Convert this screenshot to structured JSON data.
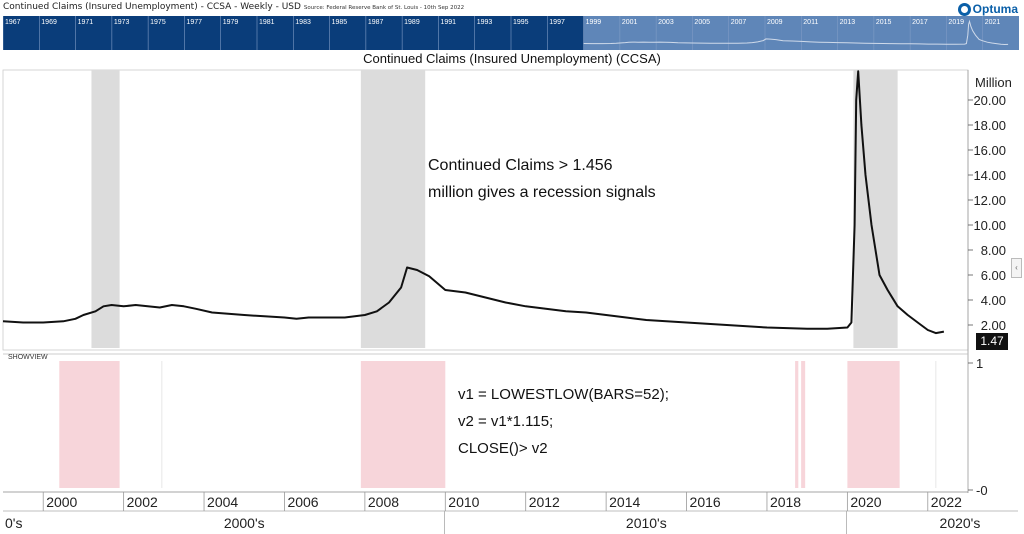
{
  "header": {
    "title": "Continued Claims (Insured Unemployment) - CCSA - Weekly - USD",
    "source": "Source: Federal Reserve Bank of St. Louis - 10th Sep 2022",
    "logo_text": "Optuma"
  },
  "overview": {
    "years": [
      "1967",
      "1969",
      "1971",
      "1973",
      "1975",
      "1977",
      "1979",
      "1981",
      "1983",
      "1985",
      "1987",
      "1989",
      "1991",
      "1993",
      "1995",
      "1997",
      "1999",
      "2001",
      "2003",
      "2005",
      "2007",
      "2009",
      "2011",
      "2013",
      "2015",
      "2017",
      "2019",
      "2021"
    ],
    "selected_from": 1999,
    "colors": {
      "dark": "#0a3d7a",
      "light": "#5f86b8",
      "line": "#cfdaea"
    }
  },
  "chart_title": "Continued Claims (Insured Unemployment) (CCSA)",
  "unit_label": "Million",
  "last_value": "1.47",
  "annotation_recession": [
    "Continued Claims > 1.456",
    "million gives a recession signals"
  ],
  "indicator_label": "SHOWVIEW",
  "annotation_formula": [
    "v1 = LOWESTLOW(BARS=52);",
    "v2 = v1*1.115;",
    "CLOSE()> v2"
  ],
  "chart_data": [
    {
      "type": "line",
      "title": "Continued Claims (Insured Unemployment) (CCSA)",
      "ylabel": "Million",
      "xlim": [
        1999.0,
        2023.0
      ],
      "ylim": [
        0,
        22
      ],
      "yticks": [
        "2.00",
        "4.00",
        "6.00",
        "8.00",
        "10.00",
        "12.00",
        "14.00",
        "16.00",
        "18.00",
        "20.00"
      ],
      "x_tick_labels": [
        "2000",
        "2002",
        "2004",
        "2006",
        "2008",
        "2010",
        "2012",
        "2014",
        "2016",
        "2018",
        "2020",
        "2022"
      ],
      "decade_labels": [
        "0's",
        "2000's",
        "2010's",
        "2020's"
      ],
      "recessions": [
        [
          2001.2,
          2001.9
        ],
        [
          2007.9,
          2009.5
        ],
        [
          2020.15,
          2021.25
        ]
      ],
      "series": [
        {
          "x": [
            1999.0,
            1999.5,
            2000.0,
            2000.5,
            2000.8,
            2001.0,
            2001.3,
            2001.5,
            2001.7,
            2002.0,
            2002.3,
            2002.6,
            2002.9,
            2003.2,
            2003.5,
            2003.8,
            2004.2,
            2004.6,
            2005.0,
            2005.5,
            2006.0,
            2006.3,
            2006.6,
            2007.0,
            2007.5,
            2008.0,
            2008.3,
            2008.6,
            2008.9,
            2009.05,
            2009.3,
            2009.6,
            2010.0,
            2010.5,
            2011.0,
            2011.5,
            2012.0,
            2012.5,
            2013.0,
            2013.5,
            2014.0,
            2014.5,
            2015.0,
            2015.5,
            2016.0,
            2016.5,
            2017.0,
            2017.5,
            2018.0,
            2018.5,
            2019.0,
            2019.5,
            2020.0,
            2020.1,
            2020.18,
            2020.22,
            2020.27,
            2020.35,
            2020.45,
            2020.6,
            2020.8,
            2021.0,
            2021.25,
            2021.5,
            2021.75,
            2022.0,
            2022.2,
            2022.4
          ],
          "y": [
            2.3,
            2.2,
            2.2,
            2.3,
            2.5,
            2.8,
            3.1,
            3.5,
            3.6,
            3.5,
            3.6,
            3.5,
            3.4,
            3.6,
            3.5,
            3.3,
            3.0,
            2.9,
            2.8,
            2.7,
            2.6,
            2.5,
            2.6,
            2.6,
            2.6,
            2.8,
            3.1,
            3.8,
            5.0,
            6.6,
            6.4,
            5.9,
            4.8,
            4.6,
            4.2,
            3.8,
            3.5,
            3.3,
            3.1,
            3.0,
            2.8,
            2.6,
            2.4,
            2.3,
            2.2,
            2.1,
            2.0,
            1.9,
            1.8,
            1.75,
            1.7,
            1.7,
            1.8,
            2.2,
            10.0,
            20.0,
            22.8,
            18.0,
            14.0,
            10.0,
            6.0,
            4.8,
            3.5,
            2.8,
            2.2,
            1.6,
            1.35,
            1.47
          ]
        }
      ]
    },
    {
      "type": "bar",
      "title": "SHOWVIEW",
      "ylim": [
        0,
        1
      ],
      "yticks": [
        "0",
        "1"
      ],
      "signals": [
        [
          2000.4,
          2001.9
        ],
        [
          2007.9,
          2010.0
        ],
        [
          2018.7,
          2018.78
        ],
        [
          2018.85,
          2018.95
        ],
        [
          2020.0,
          2021.3
        ]
      ],
      "marker_lines": [
        2002.95,
        2022.2
      ],
      "colors": {
        "signal": "#f7d5da"
      }
    }
  ]
}
